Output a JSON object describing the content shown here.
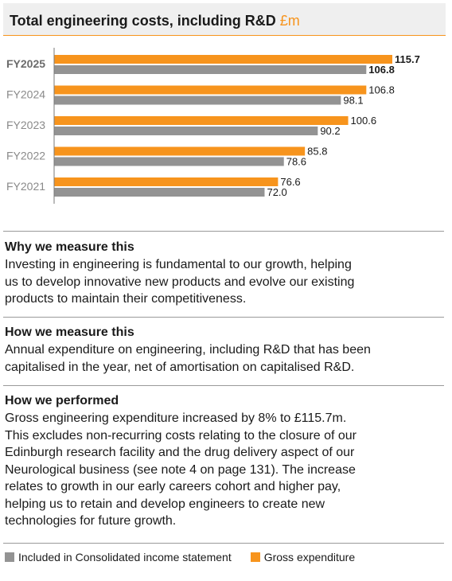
{
  "header": {
    "title": "Total engineering costs, including R&D",
    "unit": "£m"
  },
  "chart_data": {
    "type": "bar",
    "orientation": "horizontal",
    "categories": [
      "FY2025",
      "FY2024",
      "FY2023",
      "FY2022",
      "FY2021"
    ],
    "series": [
      {
        "name": "Gross expenditure",
        "color": "#f7941d",
        "values": [
          115.7,
          106.8,
          100.6,
          85.8,
          76.6
        ]
      },
      {
        "name": "Included in Consolidated income statement",
        "color": "#939393",
        "values": [
          106.8,
          98.1,
          90.2,
          78.6,
          72.0
        ]
      }
    ],
    "value_labels": [
      [
        "115.7",
        "106.8",
        "100.6",
        "85.8",
        "76.6"
      ],
      [
        "106.8",
        "98.1",
        "90.2",
        "78.6",
        "72.0"
      ]
    ],
    "highlight_category": "FY2025",
    "xlim": [
      0,
      115.7
    ],
    "grid": false
  },
  "sections": [
    {
      "heading": "Why we measure this",
      "lines": [
        "Investing in engineering is fundamental to our growth, helping",
        "us to develop innovative new products and evolve our existing",
        "products to maintain their competitiveness."
      ]
    },
    {
      "heading": "How we measure this",
      "lines": [
        "Annual expenditure on engineering, including R&D that has been",
        "capitalised in the year, net of amortisation on capitalised R&D."
      ]
    },
    {
      "heading": "How we performed",
      "lines": [
        "Gross engineering expenditure increased by 8% to £115.7m.",
        "This excludes non-recurring costs relating to the closure of our",
        "Edinburgh research facility and the drug delivery aspect of our",
        "Neurological business (see note 4 on page 131). The increase",
        "relates to growth in our early careers cohort and higher pay,",
        "helping us to retain and develop engineers to create new",
        "technologies for future growth."
      ]
    }
  ],
  "legend": [
    {
      "label": "Included in Consolidated income statement",
      "color": "#939393"
    },
    {
      "label": "Gross expenditure",
      "color": "#f7941d"
    }
  ]
}
